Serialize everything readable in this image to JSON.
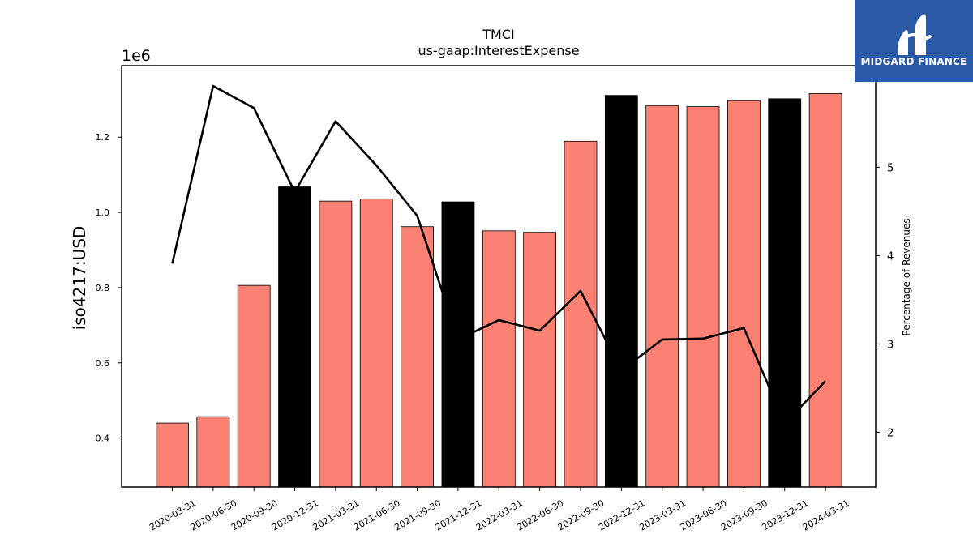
{
  "chart_data": {
    "type": "bar",
    "title": "TMCI",
    "subtitle": "us-gaap:InterestExpense",
    "ylabel": "iso4217:USD",
    "y_offset_label": "1e6",
    "y2label": "Percentage of Revenues",
    "categories": [
      "2020-03-31",
      "2020-06-30",
      "2020-09-30",
      "2020-12-31",
      "2021-03-31",
      "2021-06-30",
      "2021-09-30",
      "2021-12-31",
      "2022-03-31",
      "2022-06-30",
      "2022-09-30",
      "2022-12-31",
      "2023-03-31",
      "2023-06-30",
      "2023-09-30",
      "2023-12-31",
      "2024-03-31"
    ],
    "series": [
      {
        "type": "bar",
        "values": [
          440000,
          457000,
          806000,
          1068000,
          1030000,
          1036000,
          962000,
          1028000,
          951000,
          947000,
          1189000,
          1311000,
          1284000,
          1281000,
          1297000,
          1302000,
          1316000
        ],
        "highlight": [
          false,
          false,
          false,
          true,
          false,
          false,
          false,
          true,
          false,
          false,
          false,
          true,
          false,
          false,
          false,
          true,
          false
        ]
      },
      {
        "type": "line",
        "axis": "right",
        "values": [
          3.91,
          5.92,
          5.67,
          4.72,
          5.52,
          5.02,
          4.45,
          3.05,
          3.27,
          3.15,
          3.6,
          2.7,
          3.05,
          3.06,
          3.18,
          2.1,
          2.58
        ]
      }
    ],
    "ylim": [
      270000,
      1390000
    ],
    "y2lim": [
      1.38,
      6.15
    ],
    "yticks": [
      400000,
      600000,
      800000,
      1000000,
      1200000
    ],
    "ytick_labels": [
      "0.4",
      "0.6",
      "0.8",
      "1.0",
      "1.2"
    ],
    "y2ticks": [
      2,
      3,
      4,
      5
    ],
    "y2tick_labels": [
      "2",
      "3",
      "4",
      "5"
    ],
    "grid": false,
    "colors": {
      "bar": "#fa8072",
      "highlight": "#000000",
      "line": "#000000"
    }
  },
  "logo": {
    "text": "MIDGARD FINANCE",
    "background": "#2b5aa8"
  }
}
